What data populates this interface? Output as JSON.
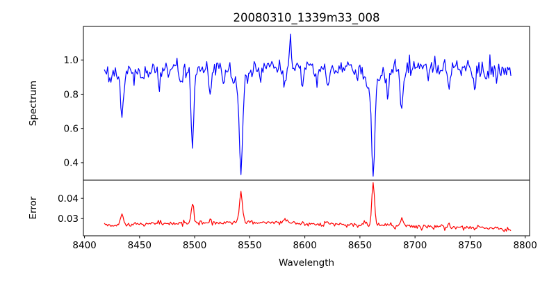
{
  "figure": {
    "background": "#ffffff",
    "axes_color": "#000000",
    "text_color": "#000000"
  },
  "chart_data": {
    "type": "line",
    "title": "20080310_1339m33_008",
    "xlabel": "Wavelength",
    "grid": false,
    "xlim": [
      8399,
      8804
    ],
    "xticks": [
      8400,
      8450,
      8500,
      8550,
      8600,
      8650,
      8700,
      8750,
      8800
    ],
    "x_data_start": 8418,
    "x_data_end": 8787,
    "x_step": 1.0,
    "panels": [
      {
        "name": "spectrum",
        "ylabel": "Spectrum",
        "ylim": [
          0.298,
          1.196
        ],
        "yticks": [
          1.0,
          0.8,
          0.6,
          0.4
        ],
        "ytick_labels": [
          "1.0",
          "0.8",
          "0.6",
          "0.4"
        ],
        "line_color": "#0000ff",
        "continuum_anchors": [
          [
            8418,
            0.925
          ],
          [
            8435,
            0.95
          ],
          [
            8460,
            0.945
          ],
          [
            8500,
            0.95
          ],
          [
            8540,
            0.955
          ],
          [
            8580,
            0.96
          ],
          [
            8620,
            0.955
          ],
          [
            8660,
            0.95
          ],
          [
            8700,
            0.955
          ],
          [
            8740,
            0.95
          ],
          [
            8787,
            0.945
          ]
        ],
        "absorption_lines": [
          {
            "center": 8424,
            "depth": 0.07,
            "sigma": 1.0
          },
          {
            "center": 8434,
            "depth": 0.26,
            "sigma": 1.2
          },
          {
            "center": 8434,
            "depth": 0.05,
            "sigma": 3.0
          },
          {
            "center": 8445,
            "depth": 0.1,
            "sigma": 1.0
          },
          {
            "center": 8452,
            "depth": 0.07,
            "sigma": 1.0
          },
          {
            "center": 8468,
            "depth": 0.12,
            "sigma": 1.1
          },
          {
            "center": 8488,
            "depth": 0.07,
            "sigma": 0.9
          },
          {
            "center": 8498,
            "depth": 0.4,
            "sigma": 1.1
          },
          {
            "center": 8498,
            "depth": 0.08,
            "sigma": 3.5
          },
          {
            "center": 8514,
            "depth": 0.13,
            "sigma": 1.2
          },
          {
            "center": 8526,
            "depth": 0.09,
            "sigma": 1.0
          },
          {
            "center": 8542,
            "depth": 0.52,
            "sigma": 1.4
          },
          {
            "center": 8542,
            "depth": 0.12,
            "sigma": 5.0
          },
          {
            "center": 8560,
            "depth": 0.06,
            "sigma": 1.0
          },
          {
            "center": 8582,
            "depth": 0.11,
            "sigma": 1.1
          },
          {
            "center": 8598,
            "depth": 0.11,
            "sigma": 1.0
          },
          {
            "center": 8611,
            "depth": 0.1,
            "sigma": 1.0
          },
          {
            "center": 8621,
            "depth": 0.11,
            "sigma": 1.1
          },
          {
            "center": 8648,
            "depth": 0.07,
            "sigma": 1.0
          },
          {
            "center": 8662,
            "depth": 0.54,
            "sigma": 1.4
          },
          {
            "center": 8662,
            "depth": 0.12,
            "sigma": 5.0
          },
          {
            "center": 8675,
            "depth": 0.13,
            "sigma": 1.2
          },
          {
            "center": 8688,
            "depth": 0.25,
            "sigma": 1.3
          },
          {
            "center": 8712,
            "depth": 0.09,
            "sigma": 1.0
          },
          {
            "center": 8731,
            "depth": 0.11,
            "sigma": 1.1
          },
          {
            "center": 8754,
            "depth": 0.11,
            "sigma": 1.1
          },
          {
            "center": 8765,
            "depth": 0.08,
            "sigma": 1.0
          }
        ],
        "spikes": [
          {
            "center": 8587,
            "amp": 0.17,
            "sigma": 0.7
          }
        ],
        "noise_sigma": 0.028,
        "noise_seed": 20080310,
        "key_points": [
          [
            8418,
            0.93
          ],
          [
            8434,
            0.66
          ],
          [
            8498,
            0.51
          ],
          [
            8542,
            0.34
          ],
          [
            8587,
            1.15
          ],
          [
            8662,
            0.33
          ],
          [
            8688,
            0.71
          ],
          [
            8787,
            0.94
          ]
        ]
      },
      {
        "name": "error",
        "ylabel": "Error",
        "ylim": [
          0.0215,
          0.049
        ],
        "yticks": [
          0.04,
          0.03
        ],
        "ytick_labels": [
          "0.04",
          "0.03"
        ],
        "line_color": "#ff0000",
        "baseline_anchors": [
          [
            8418,
            0.0265
          ],
          [
            8450,
            0.0272
          ],
          [
            8490,
            0.0278
          ],
          [
            8530,
            0.0282
          ],
          [
            8570,
            0.0282
          ],
          [
            8610,
            0.0275
          ],
          [
            8650,
            0.027
          ],
          [
            8690,
            0.0262
          ],
          [
            8730,
            0.0258
          ],
          [
            8770,
            0.025
          ],
          [
            8787,
            0.0247
          ]
        ],
        "peaks": [
          {
            "center": 8434,
            "amp": 0.006,
            "sigma": 1.2
          },
          {
            "center": 8468,
            "amp": 0.0015,
            "sigma": 1.0
          },
          {
            "center": 8498,
            "amp": 0.01,
            "sigma": 1.1
          },
          {
            "center": 8514,
            "amp": 0.002,
            "sigma": 1.0
          },
          {
            "center": 8542,
            "amp": 0.016,
            "sigma": 1.3
          },
          {
            "center": 8582,
            "amp": 0.0015,
            "sigma": 1.0
          },
          {
            "center": 8621,
            "amp": 0.0015,
            "sigma": 1.0
          },
          {
            "center": 8662,
            "amp": 0.0208,
            "sigma": 1.2
          },
          {
            "center": 8688,
            "amp": 0.0042,
            "sigma": 1.1
          },
          {
            "center": 8731,
            "amp": 0.0015,
            "sigma": 1.0
          }
        ],
        "noise_sigma": 0.0006,
        "noise_seed": 1339,
        "key_points": [
          [
            8418,
            0.0265
          ],
          [
            8434,
            0.0335
          ],
          [
            8498,
            0.038
          ],
          [
            8542,
            0.0445
          ],
          [
            8662,
            0.0475
          ],
          [
            8688,
            0.0315
          ],
          [
            8787,
            0.0247
          ]
        ]
      }
    ]
  }
}
